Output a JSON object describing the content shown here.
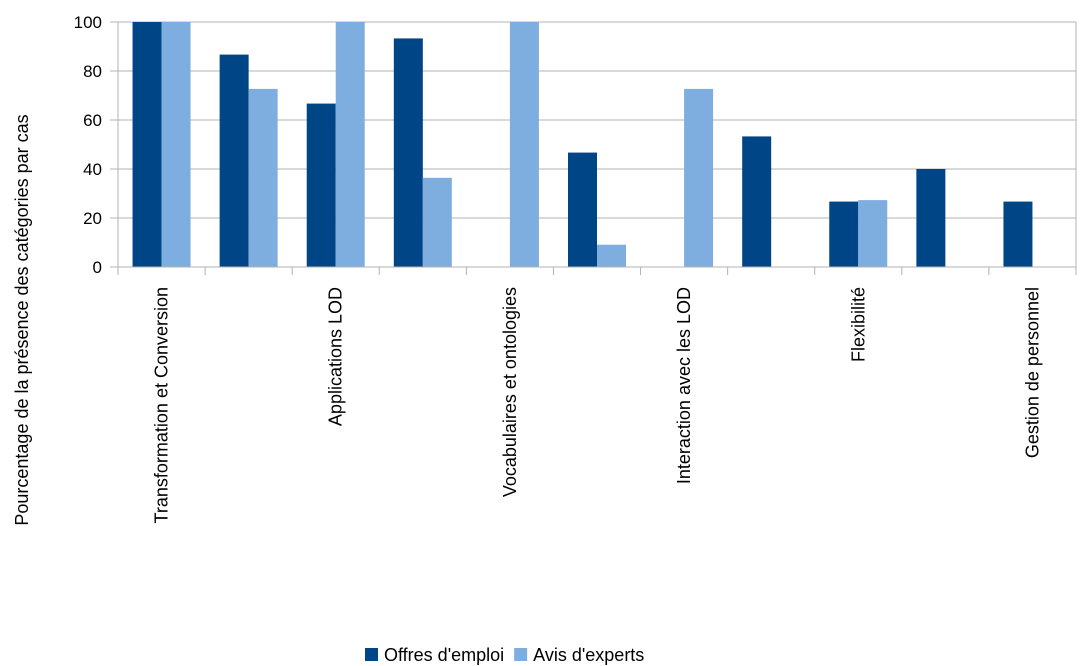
{
  "colors": {
    "series_1": "#004586",
    "series_2": "#7eaee0",
    "grid": "#b3b3b3"
  },
  "chart_data": {
    "type": "bar",
    "title": "",
    "xlabel": "",
    "ylabel": "Pourcentage de la présence des catégories par cas",
    "ylim": [
      0,
      100
    ],
    "yticks": [
      0,
      20,
      40,
      60,
      80,
      100
    ],
    "grid": true,
    "legend_position": "bottom",
    "categories": [
      "Transformation et Conversion",
      "",
      "Applications LOD",
      "",
      "Vocabulaires et ontologies",
      "",
      "Interaction avec les LOD",
      "",
      "Flexibilité",
      "",
      "Gestion de personnel"
    ],
    "series": [
      {
        "name": "Offres d'emploi",
        "values": [
          100,
          86.7,
          66.7,
          93.3,
          0,
          46.7,
          0,
          53.3,
          26.7,
          40,
          26.7
        ]
      },
      {
        "name": "Avis d'experts",
        "values": [
          100,
          72.7,
          100,
          36.4,
          100,
          9.1,
          72.7,
          0,
          27.3,
          0,
          0
        ]
      }
    ]
  }
}
